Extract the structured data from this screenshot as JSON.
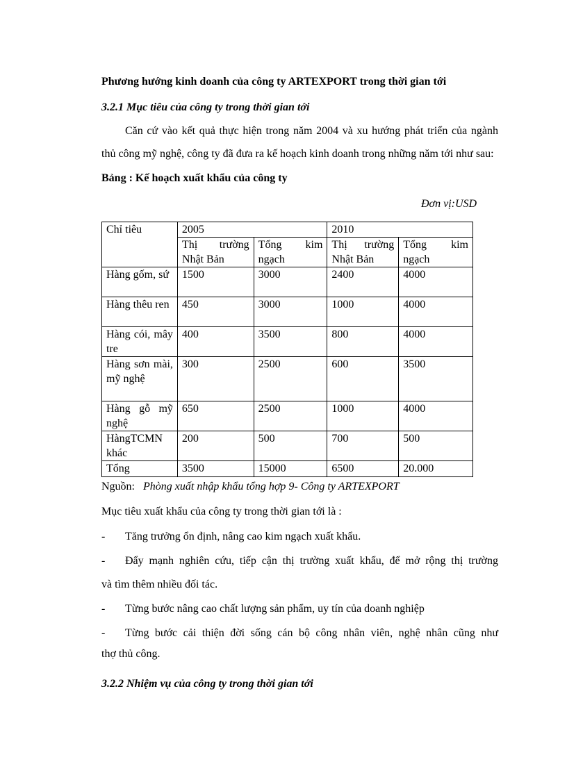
{
  "title": "Phương hướng kinh doanh  của công ty ARTEXPORT  trong thời gian tới",
  "section_321": "3.2.1 Mục tiêu của công ty trong thời gian tới",
  "intro_line1": "Căn cứ vào kết quả thực hiện trong năm 2004 và xu hướng phát triển của ngành",
  "intro_line2": "thủ công mỹ nghệ, công ty đã đưa ra kế hoạch kinh doanh trong những năm tới như sau:",
  "table_title": "Bảng : Kế hoạch xuất khẩu của công ty",
  "unit": "Đơn vị:USD",
  "table": {
    "header_col": "Chỉ tiêu",
    "years": [
      "2005",
      "2010"
    ],
    "sub_a": "Thị trường Nhật Bản",
    "sub_b": "Tổng kim ngạch",
    "rows": [
      {
        "label": "Hàng gốm, sứ",
        "values": [
          "1500",
          "3000",
          "2400",
          "4000"
        ]
      },
      {
        "label": "Hàng thêu ren",
        "values": [
          "450",
          "3000",
          "1000",
          "4000"
        ]
      },
      {
        "label": "Hàng cói, mây tre",
        "values": [
          "400",
          "3500",
          "800",
          "4000"
        ]
      },
      {
        "label": "Hàng sơn mài, mỹ nghệ",
        "values": [
          "300",
          "2500",
          "600",
          "3500"
        ]
      },
      {
        "label": "Hàng gỗ mỹ nghệ",
        "values": [
          "650",
          "2500",
          "1000",
          "4000"
        ]
      },
      {
        "label": "HàngTCMN khác",
        "values": [
          "200",
          "500",
          "700",
          "500"
        ]
      },
      {
        "label": "Tổng",
        "values": [
          "3500",
          "15000",
          "6500",
          "20.000"
        ]
      }
    ]
  },
  "source_label": "Nguồn:",
  "source_text": "Phòng xuất nhập khẩu tổng hợp 9- Công ty ARTEXPORT",
  "goals_intro": "Mục tiêu xuất khẩu của công ty trong thời gian tới là :",
  "bullets": [
    {
      "line1": "Tăng trưởng  ổn định, nâng cao kim ngạch xuất khẩu.",
      "line2": ""
    },
    {
      "line1": "Đẩy mạnh nghiên cứu, tiếp cận thị trường xuất khẩu, để mở rộng thị trường",
      "line2": "và tìm thêm nhiều đối tác."
    },
    {
      "line1": "Từng bước nâng cao chất lượng sản phẩm, uy tín của doanh nghiệp",
      "line2": ""
    },
    {
      "line1": "Từng bước cải thiện đời sống cán bộ công nhân viên, nghệ nhân cũng như",
      "line2": "thợ thủ công."
    }
  ],
  "bullet_marker": "-",
  "section_322": "3.2.2 Nhiệm vụ của công ty trong thời gian tới"
}
